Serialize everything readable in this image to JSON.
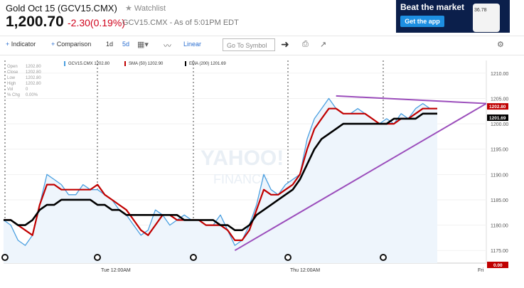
{
  "header": {
    "title": "Gold Oct 15 (GCV15.CMX)",
    "watchlist": "Watchlist",
    "price": "1,200.70",
    "change": "-2.30(0.19%)",
    "as_of": "GCV15.CMX - As of 5:01PM EDT"
  },
  "ad": {
    "headline": "Beat the market",
    "button": "Get the app",
    "phone_value": "36.78"
  },
  "toolbar": {
    "indicator": "Indicator",
    "comparison": "Comparison",
    "range_1d": "1d",
    "range_5d": "5d",
    "scale": "Linear",
    "symbol_placeholder": "Go To Symbol"
  },
  "ohlc": {
    "labels": [
      "Open",
      "Close",
      "Low",
      "High",
      "Vol",
      "% Chg"
    ],
    "values": [
      "1202.80",
      "1202.80",
      "1202.80",
      "1202.80",
      "0",
      "0.00%"
    ]
  },
  "legend": [
    {
      "label": "GCV15.CMX 1202.80",
      "color": "#4a9fe0"
    },
    {
      "label": "SMA (50) 1202.90",
      "color": "#c00000"
    },
    {
      "label": "EMA (200) 1201.69",
      "color": "#000000"
    }
  ],
  "watermark": [
    "YAHOO!",
    "FINANCE"
  ],
  "colors": {
    "price": "#4a9fe0",
    "sma": "#c00000",
    "ema": "#000000",
    "trend": "#9b4dbb",
    "badge_red": "#c00000"
  },
  "chart_data": {
    "type": "line",
    "ylim": [
      1172.5,
      1212.5
    ],
    "yticks": [
      "1210.00",
      "1205.00",
      "1200.00",
      "1195.00",
      "1190.00",
      "1185.00",
      "1180.00",
      "1175.00"
    ],
    "x_labels": [
      "Tue 12:00AM",
      "Thu 12:00AM",
      "Fri"
    ],
    "series": [
      {
        "name": "GCV15.CMX",
        "values": [
          1181,
          1180,
          1177,
          1176,
          1178,
          1184,
          1190,
          1189,
          1188,
          1186,
          1186,
          1188,
          1187,
          1187,
          1186,
          1185,
          1183,
          1182,
          1180,
          1178,
          1179,
          1183,
          1182,
          1180,
          1181,
          1182,
          1181,
          1181,
          1180,
          1180,
          1182,
          1179,
          1176,
          1177,
          1180,
          1184,
          1190,
          1187,
          1186,
          1188,
          1189,
          1190,
          1197,
          1201,
          1203,
          1205,
          1203,
          1202,
          1202,
          1203,
          1202,
          1201,
          1200,
          1201,
          1200,
          1202,
          1201,
          1203,
          1204,
          1203,
          1203
        ]
      },
      {
        "name": "SMA (50)",
        "values": [
          1181,
          1181,
          1180,
          1179,
          1178,
          1184,
          1188,
          1188,
          1187,
          1187,
          1187,
          1187,
          1187,
          1188,
          1186,
          1185,
          1184,
          1183,
          1181,
          1179,
          1178,
          1180,
          1182,
          1182,
          1181,
          1181,
          1181,
          1181,
          1180,
          1180,
          1180,
          1179,
          1177,
          1177,
          1179,
          1183,
          1187,
          1186,
          1186,
          1187,
          1188,
          1190,
          1195,
          1199,
          1201,
          1203,
          1203,
          1202,
          1202,
          1202,
          1202,
          1201,
          1200,
          1200,
          1200,
          1201,
          1201,
          1202,
          1203,
          1203,
          1203
        ]
      },
      {
        "name": "EMA (200)",
        "values": [
          1181,
          1181,
          1180,
          1180,
          1181,
          1183,
          1184,
          1184,
          1185,
          1185,
          1185,
          1185,
          1185,
          1184,
          1184,
          1183,
          1183,
          1182,
          1182,
          1182,
          1182,
          1182,
          1182,
          1182,
          1182,
          1181,
          1181,
          1181,
          1181,
          1181,
          1180,
          1180,
          1179,
          1179,
          1180,
          1182,
          1183,
          1184,
          1185,
          1186,
          1187,
          1189,
          1192,
          1195,
          1197,
          1198,
          1199,
          1200,
          1200,
          1200,
          1200,
          1200,
          1200,
          1200,
          1201,
          1201,
          1201,
          1201,
          1202,
          1202,
          1202
        ]
      }
    ],
    "trendlines": [
      {
        "from": [
          32,
          1175
        ],
        "to": [
          80,
          1204
        ]
      },
      {
        "from": [
          46,
          1205.5
        ],
        "to": [
          80,
          1204
        ]
      }
    ],
    "price_badges": [
      "1202.80",
      "1201.69"
    ],
    "bottom_badge": "0.00"
  }
}
